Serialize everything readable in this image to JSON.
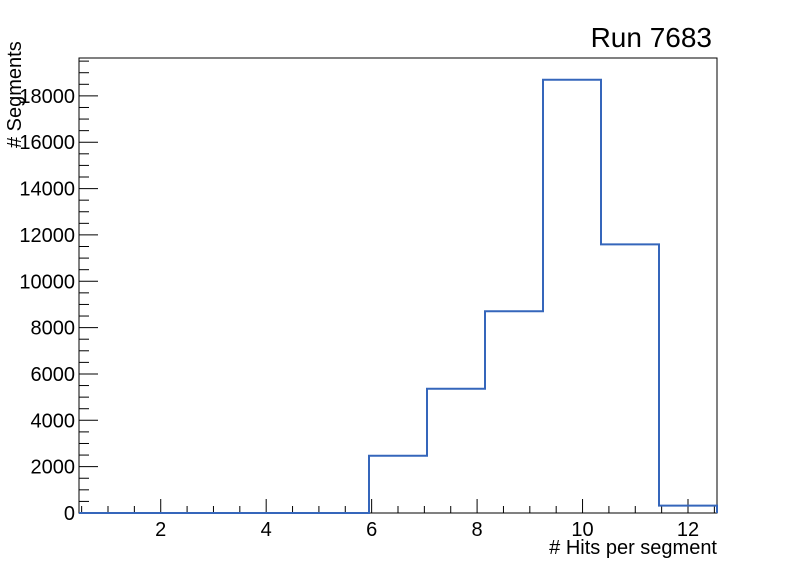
{
  "chart_data": {
    "type": "bar",
    "style": "root-step-histogram",
    "title": "Run 7683",
    "xlabel": "# Hits per segment",
    "ylabel": "# Segments",
    "xlim": [
      0.45,
      12.55
    ],
    "ylim": [
      0,
      19635
    ],
    "grid": false,
    "bin_edges": [
      0.45,
      1.55,
      2.65,
      3.75,
      4.85,
      5.95,
      7.05,
      8.15,
      9.25,
      10.35,
      11.45,
      12.55
    ],
    "counts": [
      0,
      0,
      0,
      0,
      0,
      2470,
      5360,
      8710,
      18700,
      11590,
      320
    ],
    "x_major_ticks": [
      2,
      4,
      6,
      8,
      10,
      12
    ],
    "x_tick_labels": [
      "2",
      "4",
      "6",
      "8",
      "10",
      "12"
    ],
    "x_minor_tick_step": 0.5,
    "x_minor_tick_range": [
      0.5,
      12.5
    ],
    "y_major_ticks": [
      0,
      2000,
      4000,
      6000,
      8000,
      10000,
      12000,
      14000,
      16000,
      18000
    ],
    "y_tick_labels": [
      "0",
      "2000",
      "4000",
      "6000",
      "8000",
      "10000",
      "12000",
      "14000",
      "16000",
      "18000"
    ],
    "y_minor_tick_step": 500,
    "y_minor_tick_range": [
      0,
      19500
    ],
    "line_color": "#3566bb",
    "frame_color": "#000000"
  }
}
